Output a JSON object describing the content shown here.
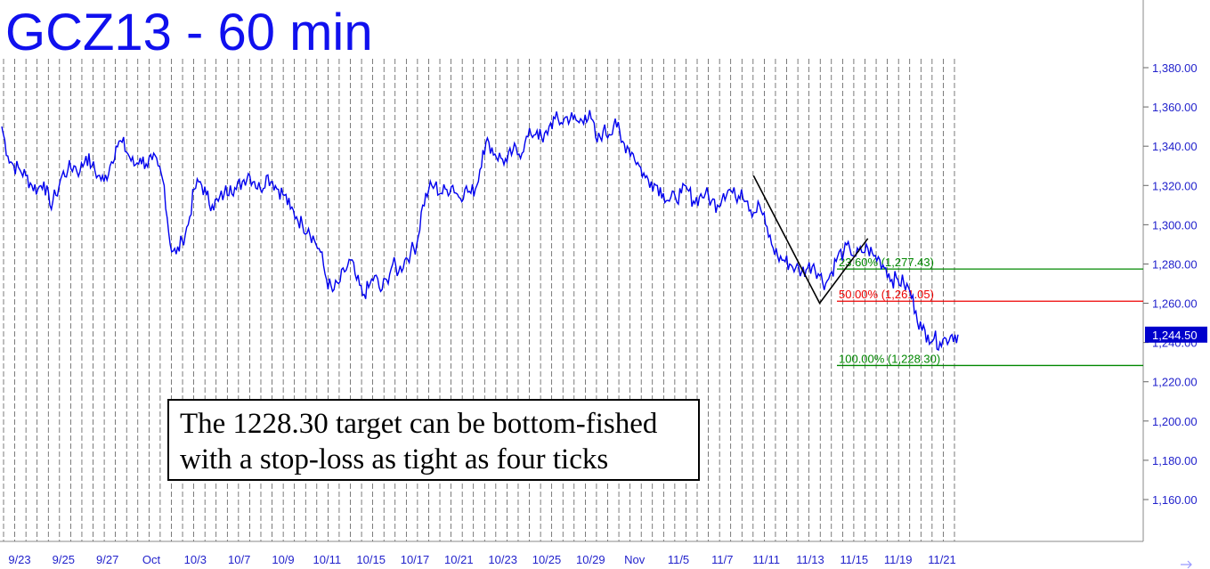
{
  "chart_data": {
    "type": "line",
    "title": "GCZ13 - 60 min",
    "ylim": [
      1140,
      1390
    ],
    "yticks": [
      "1,160.00",
      "1,180.00",
      "1,200.00",
      "1,220.00",
      "1,240.00",
      "1,260.00",
      "1,280.00",
      "1,300.00",
      "1,320.00",
      "1,340.00",
      "1,360.00",
      "1,380.00"
    ],
    "ytick_values": [
      1160,
      1180,
      1200,
      1220,
      1240,
      1260,
      1280,
      1300,
      1320,
      1340,
      1360,
      1380
    ],
    "x_labels": [
      "9/23",
      "9/25",
      "9/27",
      "Oct",
      "10/3",
      "10/7",
      "10/9",
      "10/11",
      "10/15",
      "10/17",
      "10/21",
      "10/23",
      "10/25",
      "10/29",
      "Nov",
      "11/5",
      "11/7",
      "11/11",
      "11/13",
      "11/15",
      "11/19",
      "11/21"
    ],
    "grid": "vertical dashed",
    "last_price": "1,244.50",
    "series": [
      {
        "color": "#0000ee",
        "points": [
          [
            0,
            1350
          ],
          [
            1,
            1335
          ],
          [
            2,
            1330
          ],
          [
            3,
            1328
          ],
          [
            4,
            1325
          ],
          [
            5,
            1320
          ],
          [
            6,
            1318
          ],
          [
            7,
            1322
          ],
          [
            8,
            1310
          ],
          [
            9,
            1315
          ],
          [
            10,
            1325
          ],
          [
            11,
            1328
          ],
          [
            12,
            1330
          ],
          [
            13,
            1327
          ],
          [
            14,
            1335
          ],
          [
            15,
            1330
          ],
          [
            16,
            1325
          ],
          [
            17,
            1322
          ],
          [
            18,
            1330
          ],
          [
            19,
            1340
          ],
          [
            20,
            1342
          ],
          [
            21,
            1336
          ],
          [
            22,
            1330
          ],
          [
            23,
            1334
          ],
          [
            24,
            1331
          ],
          [
            25,
            1333
          ],
          [
            26,
            1330
          ],
          [
            27,
            1320
          ],
          [
            28,
            1290
          ],
          [
            29,
            1285
          ],
          [
            30,
            1292
          ],
          [
            31,
            1300
          ],
          [
            32,
            1318
          ],
          [
            33,
            1322
          ],
          [
            34,
            1315
          ],
          [
            35,
            1310
          ],
          [
            36,
            1312
          ],
          [
            37,
            1316
          ],
          [
            38,
            1320
          ],
          [
            39,
            1318
          ],
          [
            40,
            1322
          ],
          [
            41,
            1326
          ],
          [
            42,
            1322
          ],
          [
            43,
            1318
          ],
          [
            44,
            1325
          ],
          [
            45,
            1322
          ],
          [
            46,
            1318
          ],
          [
            47,
            1315
          ],
          [
            48,
            1308
          ],
          [
            49,
            1304
          ],
          [
            50,
            1300
          ],
          [
            51,
            1298
          ],
          [
            52,
            1292
          ],
          [
            53,
            1286
          ],
          [
            54,
            1272
          ],
          [
            55,
            1266
          ],
          [
            56,
            1270
          ],
          [
            57,
            1276
          ],
          [
            58,
            1282
          ],
          [
            59,
            1272
          ],
          [
            60,
            1264
          ],
          [
            61,
            1268
          ],
          [
            62,
            1274
          ],
          [
            63,
            1266
          ],
          [
            64,
            1272
          ],
          [
            65,
            1280
          ],
          [
            66,
            1276
          ],
          [
            67,
            1282
          ],
          [
            68,
            1286
          ],
          [
            69,
            1290
          ],
          [
            70,
            1310
          ],
          [
            71,
            1318
          ],
          [
            72,
            1320
          ],
          [
            73,
            1316
          ],
          [
            74,
            1318
          ],
          [
            75,
            1320
          ],
          [
            76,
            1314
          ],
          [
            77,
            1318
          ],
          [
            78,
            1316
          ],
          [
            79,
            1320
          ],
          [
            80,
            1338
          ],
          [
            81,
            1342
          ],
          [
            82,
            1336
          ],
          [
            83,
            1334
          ],
          [
            84,
            1332
          ],
          [
            85,
            1338
          ],
          [
            86,
            1336
          ],
          [
            87,
            1342
          ],
          [
            88,
            1346
          ],
          [
            89,
            1348
          ],
          [
            90,
            1342
          ],
          [
            91,
            1350
          ],
          [
            92,
            1354
          ],
          [
            93,
            1352
          ],
          [
            94,
            1355
          ],
          [
            95,
            1354
          ],
          [
            96,
            1352
          ],
          [
            97,
            1356
          ],
          [
            98,
            1354
          ],
          [
            99,
            1342
          ],
          [
            100,
            1348
          ],
          [
            101,
            1346
          ],
          [
            102,
            1354
          ],
          [
            103,
            1342
          ],
          [
            104,
            1340
          ],
          [
            105,
            1336
          ],
          [
            106,
            1330
          ],
          [
            107,
            1324
          ],
          [
            108,
            1322
          ],
          [
            109,
            1320
          ],
          [
            110,
            1316
          ],
          [
            111,
            1312
          ],
          [
            112,
            1314
          ],
          [
            113,
            1316
          ],
          [
            114,
            1318
          ],
          [
            115,
            1312
          ],
          [
            116,
            1314
          ],
          [
            117,
            1316
          ],
          [
            118,
            1312
          ],
          [
            119,
            1310
          ],
          [
            120,
            1316
          ],
          [
            121,
            1318
          ],
          [
            122,
            1314
          ],
          [
            123,
            1318
          ],
          [
            124,
            1312
          ],
          [
            125,
            1306
          ],
          [
            126,
            1310
          ],
          [
            127,
            1300
          ],
          [
            128,
            1290
          ],
          [
            129,
            1284
          ],
          [
            130,
            1282
          ],
          [
            131,
            1280
          ],
          [
            132,
            1278
          ],
          [
            133,
            1276
          ],
          [
            134,
            1278
          ],
          [
            135,
            1280
          ],
          [
            136,
            1274
          ],
          [
            137,
            1270
          ],
          [
            138,
            1276
          ],
          [
            139,
            1284
          ],
          [
            140,
            1286
          ],
          [
            141,
            1288
          ],
          [
            142,
            1284
          ],
          [
            143,
            1286
          ],
          [
            144,
            1288
          ],
          [
            145,
            1284
          ],
          [
            146,
            1282
          ],
          [
            147,
            1278
          ],
          [
            148,
            1272
          ],
          [
            149,
            1272
          ],
          [
            150,
            1270
          ],
          [
            151,
            1266
          ],
          [
            152,
            1256
          ],
          [
            153,
            1246
          ],
          [
            154,
            1244
          ],
          [
            155,
            1242
          ],
          [
            156,
            1240
          ],
          [
            157,
            1242
          ],
          [
            158,
            1244
          ],
          [
            159,
            1244
          ]
        ]
      }
    ],
    "trend_line": {
      "color": "#000000",
      "points": [
        [
          125,
          1325
        ],
        [
          136,
          1260
        ],
        [
          144,
          1293
        ]
      ]
    },
    "fib_levels": [
      {
        "label": "23.60% (1,277.43)",
        "value": 1277.43,
        "color": "#008800",
        "text_color": "#008800"
      },
      {
        "label": "50.00% (1,261.05)",
        "value": 1261.05,
        "color": "#ee0000",
        "text_color": "#ee0000"
      },
      {
        "label": "100.00% (1,228.30)",
        "value": 1228.3,
        "color": "#008800",
        "text_color": "#008800"
      }
    ]
  },
  "annotation": {
    "line1": "The 1228.30 target can be bottom-fished",
    "line2": "with a stop-loss as tight as four ticks"
  }
}
